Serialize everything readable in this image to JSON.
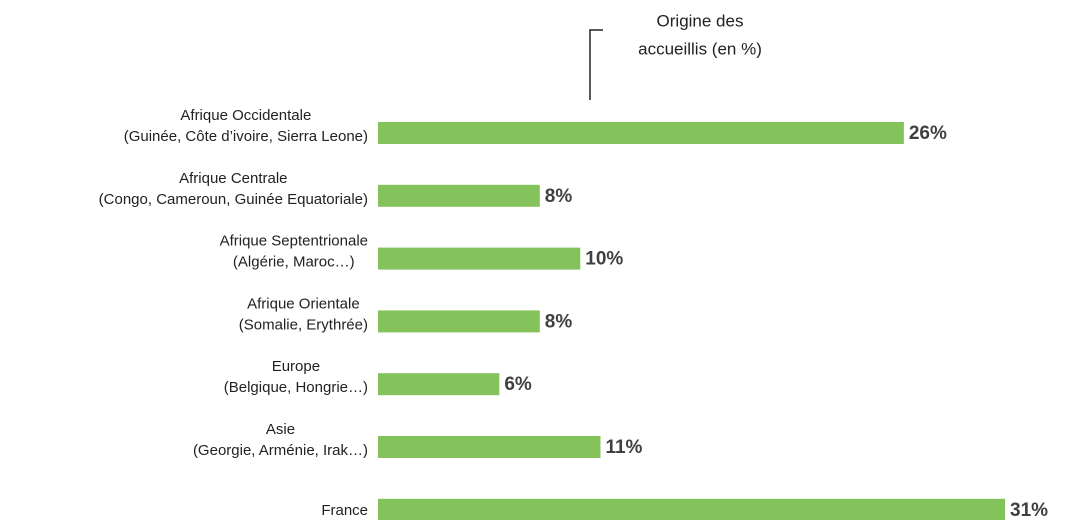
{
  "chart_data": {
    "type": "bar",
    "orientation": "horizontal",
    "title": [
      "Origine des",
      "accueillis (en %)"
    ],
    "categories": [
      [
        "Afrique Occidentale",
        "(Guinée, Côte d’ivoire, Sierra Leone)"
      ],
      [
        "Afrique Centrale",
        "(Congo, Cameroun, Guinée Equatoriale)"
      ],
      [
        "Afrique Septentrionale",
        "(Algérie, Maroc…)"
      ],
      [
        "Afrique Orientale",
        "(Somalie, Erythrée)"
      ],
      [
        "Europe",
        "(Belgique, Hongrie…)"
      ],
      [
        "Asie",
        "(Georgie, Arménie, Irak…)"
      ],
      [
        "France"
      ]
    ],
    "values": [
      26,
      8,
      10,
      8,
      6,
      11,
      31
    ],
    "value_labels": [
      "26%",
      "8%",
      "10%",
      "8%",
      "6%",
      "11%",
      "31%"
    ],
    "color": "#84c35c"
  }
}
